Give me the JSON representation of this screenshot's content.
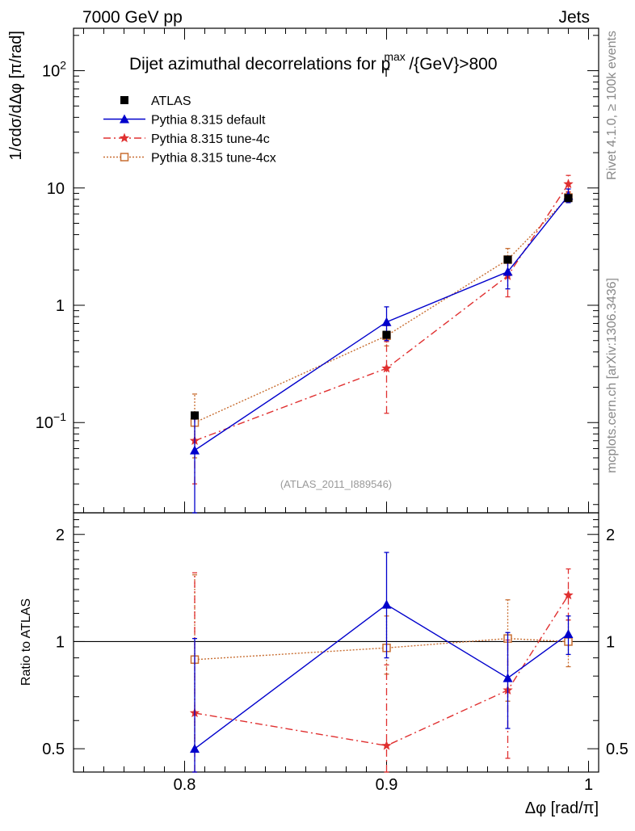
{
  "header": {
    "left": "7000 GeV pp",
    "right": "Jets"
  },
  "side_labels": {
    "rivet": "Rivet 4.1.0, ≥ 100k events",
    "mcplots": "mcplots.cern.ch [arXiv:1306.3436]"
  },
  "chart_data": {
    "type": "line",
    "title": "Dijet azimuthal decorrelations for p",
    "title_sup": "max",
    "title_sub": "T",
    "title_suffix": "/{GeV}>800",
    "ylabel": "1/σdσ/dΔφ [π/rad]",
    "xlabel": "Δφ [rad/π]",
    "ratio_ylabel": "Ratio to ATLAS",
    "watermark": "(ATLAS_2011_I889546)",
    "xlim": [
      0.745,
      1.005
    ],
    "ylim": [
      0.017,
      230
    ],
    "yscale": "log",
    "ratio_ylim": [
      0.43,
      2.3
    ],
    "ratio_yscale": "log",
    "x_ticks": [
      {
        "value": 0.8,
        "label": "0.8"
      },
      {
        "value": 0.9,
        "label": "0.9"
      },
      {
        "value": 1.0,
        "label": "1"
      }
    ],
    "y_ticks": [
      {
        "value": 0.1,
        "base": "10",
        "exp": "−1"
      },
      {
        "value": 1,
        "base": "1",
        "exp": ""
      },
      {
        "value": 10,
        "base": "10",
        "exp": ""
      },
      {
        "value": 100,
        "base": "10",
        "exp": "2"
      }
    ],
    "ratio_ticks": [
      {
        "value": 0.5,
        "label": "0.5"
      },
      {
        "value": 1,
        "label": "1"
      },
      {
        "value": 2,
        "label": "2"
      }
    ],
    "series": [
      {
        "name": "ATLAS",
        "style": "data",
        "color": "#000000",
        "marker": "square-filled",
        "x": [
          0.805,
          0.9,
          0.96,
          0.99
        ],
        "y": [
          0.115,
          0.56,
          2.45,
          8.2
        ],
        "yerr_lo": [
          0.008,
          0.03,
          0.12,
          0.4
        ],
        "yerr_hi": [
          0.008,
          0.03,
          0.12,
          0.4
        ],
        "ratio": [
          1,
          1,
          1,
          1
        ]
      },
      {
        "name": "Pythia 8.315 default",
        "style": "solid",
        "color": "#0000cc",
        "marker": "triangle",
        "x": [
          0.805,
          0.9,
          0.96,
          0.99
        ],
        "y": [
          0.058,
          0.72,
          1.93,
          8.6
        ],
        "yerr_lo": [
          0.045,
          0.22,
          0.55,
          1.1
        ],
        "yerr_hi": [
          0.06,
          0.25,
          0.6,
          1.2
        ],
        "ratio": [
          0.5,
          1.27,
          0.79,
          1.05
        ],
        "ratio_err_lo": [
          0.14,
          0.37,
          0.22,
          0.13
        ],
        "ratio_err_hi": [
          0.52,
          0.51,
          0.27,
          0.13
        ]
      },
      {
        "name": "Pythia 8.315 tune-4c",
        "style": "dashdot",
        "color": "#e03030",
        "marker": "star",
        "x": [
          0.805,
          0.9,
          0.96,
          0.99
        ],
        "y": [
          0.07,
          0.29,
          1.78,
          10.8
        ],
        "yerr_lo": [
          0.04,
          0.17,
          0.6,
          1.5
        ],
        "yerr_hi": [
          0.05,
          0.2,
          0.65,
          2.0
        ],
        "ratio": [
          0.63,
          0.51,
          0.73,
          1.35
        ],
        "ratio_err_lo": [
          0.2,
          0.2,
          0.26,
          0.2
        ],
        "ratio_err_hi": [
          0.93,
          0.35,
          0.28,
          0.25
        ]
      },
      {
        "name": "Pythia 8.315 tune-4cx",
        "style": "dotted",
        "color": "#c86e32",
        "marker": "square-open",
        "x": [
          0.805,
          0.9,
          0.96,
          0.99
        ],
        "y": [
          0.1,
          0.55,
          2.45,
          8.3
        ],
        "yerr_lo": [
          0.05,
          0.1,
          0.55,
          0.7
        ],
        "yerr_hi": [
          0.075,
          0.12,
          0.6,
          0.8
        ],
        "ratio": [
          0.89,
          0.96,
          1.02,
          1.0
        ],
        "ratio_err_lo": [
          0.4,
          0.15,
          0.34,
          0.15
        ],
        "ratio_err_hi": [
          0.65,
          0.22,
          0.29,
          0.15
        ]
      }
    ]
  }
}
